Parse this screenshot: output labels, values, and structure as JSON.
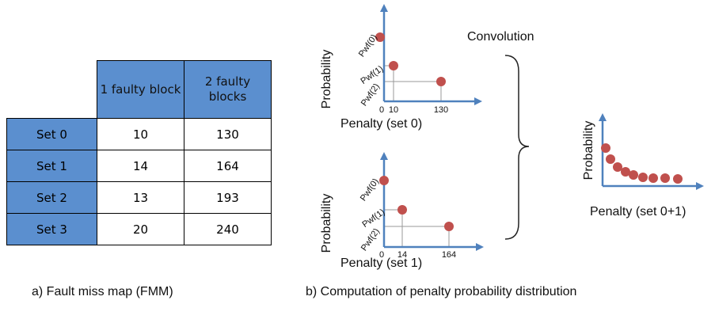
{
  "table": {
    "header": [
      "1 faulty block",
      "2 faulty blocks"
    ],
    "rows": [
      [
        "Set 0",
        "10",
        "130"
      ],
      [
        "Set 1",
        "14",
        "164"
      ],
      [
        "Set 2",
        "13",
        "193"
      ],
      [
        "Set 3",
        "20",
        "240"
      ]
    ]
  },
  "plots": [
    {
      "y_label": "Probability",
      "x_label": "Penalty (set 0)",
      "y_ticks": [
        "Pwf(0)",
        "Pwf(1)",
        "Pwf(2)"
      ],
      "x_ticks": [
        "0",
        "10",
        "130"
      ]
    },
    {
      "y_label": "Probability",
      "x_label": "Penalty (set 1)",
      "y_ticks": [
        "Pwf(0)",
        "Pwf(1)",
        "Pwf(2)"
      ],
      "x_ticks": [
        "0",
        "14",
        "164"
      ]
    },
    {
      "y_label": "Probability",
      "x_label": "Penalty (set 0+1)"
    }
  ],
  "convolution": "Convolution",
  "captions": [
    "a) Fault miss map (FMM)",
    "b) Computation of penalty probability distribution"
  ]
}
